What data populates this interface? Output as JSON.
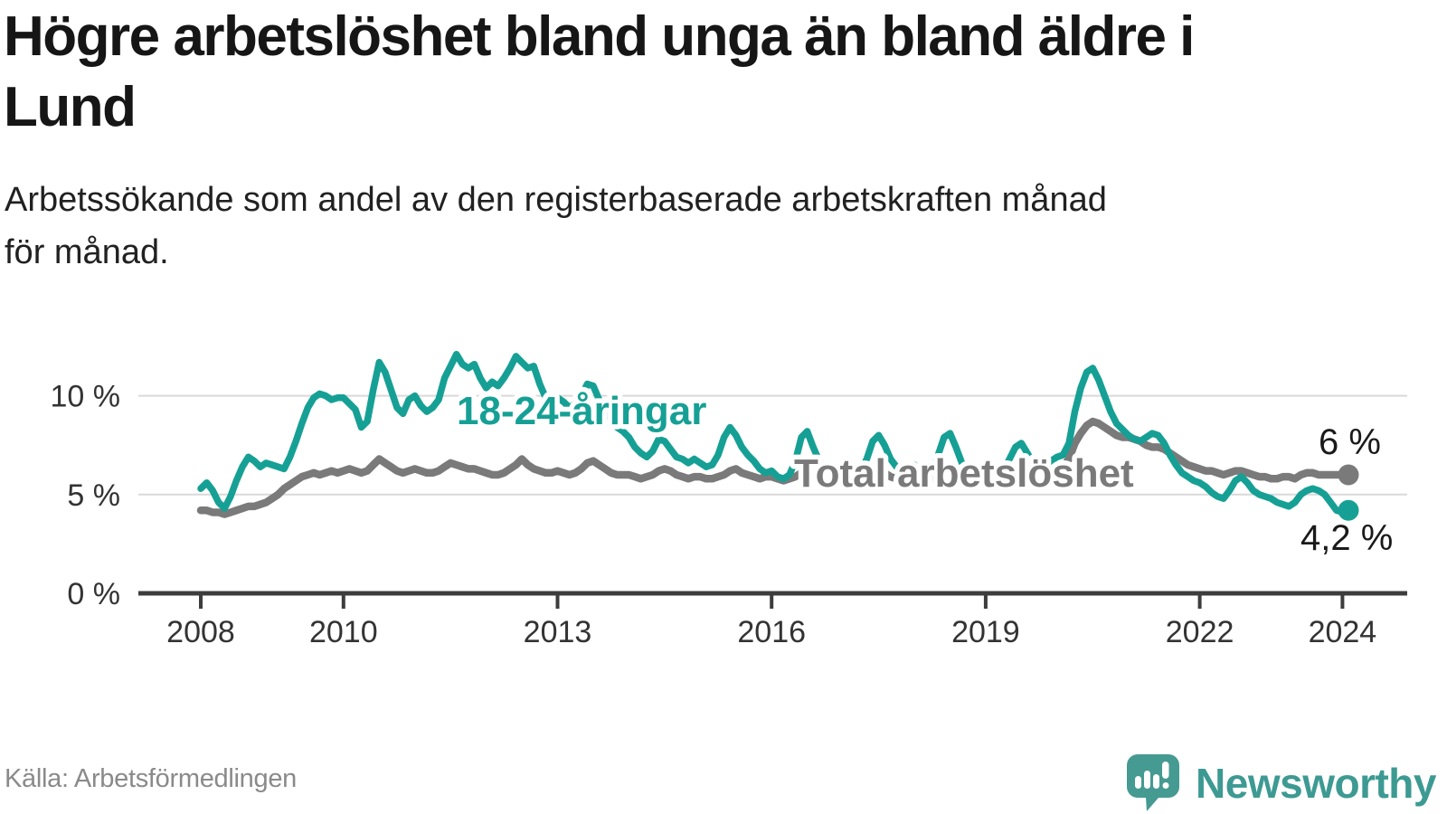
{
  "title": {
    "line1": "Högre arbetslöshet bland unga än bland äldre i",
    "line2": "Lund"
  },
  "subtitle": {
    "line1": "Arbetssökande som andel av den registerbaserade arbetskraften månad",
    "line2": "för månad."
  },
  "source": {
    "label": "Källa: Arbetsförmedlingen"
  },
  "branding": {
    "name": "Newsworthy",
    "icon": "speech-bubble-bar-chart-icon"
  },
  "colors": {
    "accent_teal": "#16a095",
    "line_gray": "#7a7a7a",
    "grid": "#d9d9d9",
    "axis": "#3d3d3d",
    "text_dark": "#1a1a1a",
    "text_gray": "#8a8a8a",
    "brand_teal": "#3d9a93"
  },
  "chart_data": {
    "type": "line",
    "unit": "%",
    "x_start_year": 2008,
    "x_step_months": 1,
    "x_end": "2024-02",
    "grid": "horizontal-only",
    "ylim": [
      0,
      12.5
    ],
    "yticks": [
      {
        "value": 0,
        "label": "0 %"
      },
      {
        "value": 5,
        "label": "5 %"
      },
      {
        "value": 10,
        "label": "10 %"
      }
    ],
    "xticks": [
      {
        "year": 2008,
        "label": "2008"
      },
      {
        "year": 2010,
        "label": "2010"
      },
      {
        "year": 2013,
        "label": "2013"
      },
      {
        "year": 2016,
        "label": "2016"
      },
      {
        "year": 2019,
        "label": "2019"
      },
      {
        "year": 2022,
        "label": "2022"
      },
      {
        "year": 2024,
        "label": "2024"
      }
    ],
    "series": [
      {
        "name": "18-24-åringar",
        "color": "#16a095",
        "end_label": "4,2 %",
        "end_value": 4.2,
        "values": [
          5.3,
          5.6,
          5.2,
          4.6,
          4.3,
          4.9,
          5.7,
          6.4,
          6.9,
          6.7,
          6.4,
          6.6,
          6.5,
          6.4,
          6.3,
          6.9,
          7.7,
          8.6,
          9.4,
          9.9,
          10.1,
          10.0,
          9.8,
          9.9,
          9.9,
          9.6,
          9.3,
          8.4,
          8.7,
          10.3,
          11.7,
          11.2,
          10.3,
          9.4,
          9.1,
          9.8,
          10.0,
          9.5,
          9.2,
          9.4,
          9.8,
          10.9,
          11.5,
          12.1,
          11.6,
          11.4,
          11.6,
          10.9,
          10.4,
          10.7,
          10.5,
          10.9,
          11.4,
          12.0,
          11.7,
          11.4,
          11.5,
          10.6,
          9.9,
          9.7,
          9.9,
          9.7,
          9.4,
          9.6,
          10.0,
          10.6,
          10.5,
          9.8,
          9.2,
          8.8,
          8.4,
          8.2,
          7.9,
          7.4,
          7.1,
          6.9,
          7.2,
          7.8,
          7.7,
          7.3,
          6.9,
          6.8,
          6.6,
          6.8,
          6.6,
          6.4,
          6.5,
          7.0,
          7.9,
          8.4,
          8.0,
          7.4,
          7.0,
          6.7,
          6.3,
          6.1,
          6.2,
          5.9,
          5.8,
          6.0,
          6.7,
          7.9,
          8.2,
          7.4,
          6.7,
          6.3,
          6.1,
          6.3,
          6.4,
          6.2,
          6.0,
          6.2,
          6.8,
          7.7,
          8.0,
          7.5,
          6.8,
          6.4,
          6.2,
          6.4,
          6.5,
          6.2,
          6.0,
          6.3,
          7.0,
          7.9,
          8.1,
          7.4,
          6.6,
          6.2,
          6.0,
          6.2,
          6.3,
          6.1,
          6.0,
          6.2,
          6.8,
          7.4,
          7.6,
          7.1,
          6.6,
          6.4,
          6.5,
          6.7,
          6.9,
          7.0,
          7.6,
          9.2,
          10.4,
          11.2,
          11.4,
          10.8,
          10.0,
          9.2,
          8.6,
          8.3,
          8.0,
          7.8,
          7.7,
          7.9,
          8.1,
          8.0,
          7.6,
          7.0,
          6.5,
          6.1,
          5.9,
          5.7,
          5.6,
          5.4,
          5.1,
          4.9,
          4.8,
          5.2,
          5.7,
          5.9,
          5.6,
          5.2,
          5.0,
          4.9,
          4.8,
          4.6,
          4.5,
          4.4,
          4.6,
          5.0,
          5.2,
          5.3,
          5.2,
          5.0,
          4.6,
          4.2,
          4.1,
          4.2
        ]
      },
      {
        "name": "Total arbetslöshet",
        "color": "#7a7a7a",
        "end_label": "6 %",
        "end_value": 6.0,
        "values": [
          4.2,
          4.2,
          4.1,
          4.1,
          4.0,
          4.1,
          4.2,
          4.3,
          4.4,
          4.4,
          4.5,
          4.6,
          4.8,
          5.0,
          5.3,
          5.5,
          5.7,
          5.9,
          6.0,
          6.1,
          6.0,
          6.1,
          6.2,
          6.1,
          6.2,
          6.3,
          6.2,
          6.1,
          6.2,
          6.5,
          6.8,
          6.6,
          6.4,
          6.2,
          6.1,
          6.2,
          6.3,
          6.2,
          6.1,
          6.1,
          6.2,
          6.4,
          6.6,
          6.5,
          6.4,
          6.3,
          6.3,
          6.2,
          6.1,
          6.0,
          6.0,
          6.1,
          6.3,
          6.5,
          6.8,
          6.5,
          6.3,
          6.2,
          6.1,
          6.1,
          6.2,
          6.1,
          6.0,
          6.1,
          6.3,
          6.6,
          6.7,
          6.5,
          6.3,
          6.1,
          6.0,
          6.0,
          6.0,
          5.9,
          5.8,
          5.9,
          6.0,
          6.2,
          6.3,
          6.2,
          6.0,
          5.9,
          5.8,
          5.9,
          5.9,
          5.8,
          5.8,
          5.9,
          6.0,
          6.2,
          6.3,
          6.1,
          6.0,
          5.9,
          5.8,
          5.9,
          5.9,
          5.8,
          5.7,
          5.8,
          5.9,
          6.1,
          6.2,
          6.1,
          5.9,
          5.8,
          5.8,
          5.8,
          5.9,
          5.8,
          5.7,
          5.8,
          6.0,
          6.1,
          6.2,
          6.1,
          5.9,
          5.8,
          5.8,
          5.9,
          5.9,
          5.8,
          5.7,
          5.8,
          6.0,
          6.1,
          6.2,
          6.0,
          5.9,
          5.8,
          5.7,
          5.8,
          5.9,
          5.9,
          5.8,
          5.9,
          6.0,
          6.2,
          6.3,
          6.2,
          6.1,
          6.1,
          6.2,
          6.2,
          6.3,
          6.4,
          6.8,
          7.6,
          8.1,
          8.5,
          8.7,
          8.6,
          8.4,
          8.2,
          8.0,
          7.9,
          7.9,
          7.8,
          7.7,
          7.5,
          7.4,
          7.4,
          7.3,
          7.1,
          6.9,
          6.7,
          6.5,
          6.4,
          6.3,
          6.2,
          6.2,
          6.1,
          6.0,
          6.1,
          6.2,
          6.2,
          6.1,
          6.0,
          5.9,
          5.9,
          5.8,
          5.8,
          5.9,
          5.9,
          5.8,
          6.0,
          6.1,
          6.1,
          6.0,
          6.0,
          6.0,
          6.0,
          6.0,
          6.0
        ]
      }
    ]
  }
}
